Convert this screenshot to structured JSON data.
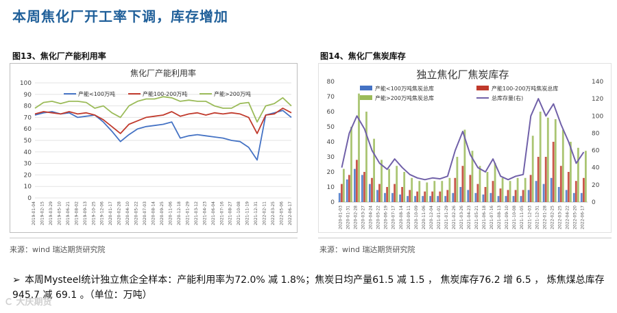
{
  "slide": {
    "title": "本周焦化厂开工率下调，库存增加",
    "summary": "本周Mysteel统计独立焦企全样本：产能利用率为72.0% 减 1.8%；焦炭日均产量61.5 减 1.5 ， 焦炭库存76.2 增 6.5 ，  炼焦煤总库存945.7 减 69.1 。（单位：万吨）",
    "bullet": "➢",
    "watermark": "Ｃ 大庆期货",
    "colors": {
      "title": "#1f5f99",
      "blue": "#4472c4",
      "red": "#c0392b",
      "green": "#9bbb59",
      "purple": "#7060a8"
    }
  },
  "figures": [
    {
      "caption": "图13、焦化厂产能利用率",
      "source": "来源：wind   瑞达期货研究院"
    },
    {
      "caption": "图14、焦化厂焦炭库存",
      "source": "来源：wind   瑞达期货研究院"
    }
  ],
  "chart_data": [
    {
      "type": "line",
      "title": "焦化厂产能利用率",
      "ylim": [
        0,
        100
      ],
      "yticks": [
        0,
        10,
        20,
        30,
        40,
        50,
        60,
        70,
        80,
        90,
        100
      ],
      "categories": [
        "2019-01-04",
        "2019-02-15",
        "2019-03-29",
        "2019-05-10",
        "2019-06-21",
        "2019-08-02",
        "2019-09-13",
        "2019-10-25",
        "2019-12-06",
        "2020-01-17",
        "2020-02-28",
        "2020-04-10",
        "2020-05-22",
        "2020-07-03",
        "2020-08-14",
        "2020-09-25",
        "2020-11-06",
        "2020-12-18",
        "2021-01-29",
        "2021-03-12",
        "2021-04-23",
        "2021-06-04",
        "2021-07-16",
        "2021-08-27",
        "2021-10-08",
        "2021-11-19",
        "2021-12-31",
        "2022-02-11",
        "2022-03-25",
        "2022-05-06",
        "2022-06-17"
      ],
      "xtick_labels": [
        "2019-01-04",
        "2019-02-15",
        "2019-03-29",
        "2019-05-10",
        "2019-06-21",
        "2019-08-02",
        "2019-09-13",
        "2019-10-25",
        "2019-12-06",
        "2020-01-17",
        "2020-02-28",
        "2020-04-10",
        "2020-05-22",
        "2020-07-03",
        "2020-08-14",
        "2020-09-25",
        "2020-11-06",
        "2020-12-18",
        "2021-01-29",
        "2021-03-12",
        "2021-04-23",
        "2021-06-04",
        "2021-07-16",
        "2021-08-27",
        "2021-10-08",
        "2021-11-19",
        "2021-12-31",
        "2022-02-11",
        "2022-03-25",
        "2022-05-06",
        "2022-06-17"
      ],
      "series": [
        {
          "name": "产能<100万吨",
          "color": "#4472c4",
          "values": [
            72,
            74,
            75,
            73,
            74,
            70,
            71,
            72,
            66,
            58,
            49,
            55,
            60,
            62,
            63,
            64,
            66,
            52,
            54,
            55,
            54,
            53,
            52,
            50,
            49,
            44,
            33,
            72,
            74,
            76,
            70
          ]
        },
        {
          "name": "产能100-200万吨",
          "color": "#c0392b",
          "values": [
            73,
            75,
            74,
            73,
            75,
            73,
            74,
            72,
            68,
            62,
            56,
            64,
            67,
            70,
            71,
            72,
            75,
            71,
            73,
            74,
            72,
            74,
            73,
            74,
            73,
            70,
            56,
            72,
            73,
            78,
            74
          ]
        },
        {
          "name": "产能>200万吨",
          "color": "#9bbb59",
          "values": [
            78,
            83,
            84,
            82,
            84,
            84,
            83,
            78,
            80,
            74,
            70,
            80,
            84,
            86,
            86,
            88,
            87,
            84,
            85,
            84,
            84,
            80,
            78,
            78,
            82,
            83,
            66,
            80,
            82,
            87,
            80
          ]
        }
      ]
    },
    {
      "type": "bar",
      "title": "独立焦化厂焦炭库存",
      "ylim": [
        0,
        80
      ],
      "yticks": [
        0,
        10,
        20,
        30,
        40,
        50,
        60,
        70,
        80
      ],
      "y2lim": [
        0,
        140
      ],
      "y2ticks": [
        0,
        20,
        40,
        60,
        80,
        100,
        120,
        140
      ],
      "categories": [
        "2020-01-03",
        "2020-01-31",
        "2020-02-28",
        "2020-03-27",
        "2020-04-24",
        "2020-05-22",
        "2020-06-19",
        "2020-07-17",
        "2020-08-14",
        "2020-09-11",
        "2020-10-09",
        "2020-11-06",
        "2020-12-04",
        "2021-01-01",
        "2021-01-29",
        "2021-02-26",
        "2021-03-26",
        "2021-04-23",
        "2021-05-21",
        "2021-06-18",
        "2021-07-16",
        "2021-08-13",
        "2021-09-10",
        "2021-10-08",
        "2021-11-05",
        "2021-12-03",
        "2021-12-31",
        "2022-01-28",
        "2022-02-25",
        "2022-03-25",
        "2022-04-22",
        "2022-05-20",
        "2022-06-17"
      ],
      "xtick_labels": [
        "2020-01-03",
        "2020-01-31",
        "2020-02-28",
        "2020-03-27",
        "2020-04-24",
        "2020-05-22",
        "2020-06-19",
        "2020-07-17",
        "2020-08-14",
        "2020-09-11",
        "2020-10-09",
        "2020-11-06",
        "2020-12-04",
        "2021-01-01",
        "2021-01-29",
        "2021-02-26",
        "2021-03-26",
        "2021-04-23",
        "2021-05-21",
        "2021-06-18",
        "2021-07-16",
        "2021-08-13",
        "2021-09-10",
        "2021-10-08",
        "2021-11-05",
        "2021-12-03",
        "2021-12-31",
        "2022-01-28",
        "2022-02-25",
        "2022-03-25",
        "2022-04-22",
        "2022-05-20",
        "2022-06-17"
      ],
      "series": [
        {
          "name": "产能<100万吨焦炭总库",
          "axis": "left",
          "color": "#4472c4",
          "values": [
            6,
            15,
            22,
            18,
            12,
            8,
            6,
            6,
            5,
            4,
            4,
            4,
            4,
            4,
            4,
            6,
            10,
            8,
            6,
            5,
            6,
            4,
            4,
            4,
            4,
            8,
            14,
            12,
            16,
            10,
            8,
            6,
            6
          ]
        },
        {
          "name": "产能100-200万吨焦炭总库",
          "axis": "left",
          "color": "#c0392b",
          "values": [
            12,
            18,
            28,
            20,
            16,
            12,
            10,
            12,
            10,
            8,
            7,
            7,
            7,
            7,
            8,
            16,
            24,
            18,
            12,
            10,
            14,
            9,
            8,
            8,
            8,
            18,
            30,
            30,
            40,
            24,
            20,
            14,
            16
          ]
        },
        {
          "name": "产能>200万吨焦炭总库",
          "axis": "left",
          "color": "#9bbb59",
          "values": [
            22,
            50,
            72,
            60,
            42,
            28,
            22,
            24,
            20,
            16,
            14,
            13,
            14,
            14,
            16,
            30,
            48,
            34,
            24,
            20,
            26,
            16,
            14,
            16,
            16,
            44,
            60,
            56,
            55,
            48,
            40,
            36,
            34
          ]
        },
        {
          "name": "总库存量(右)",
          "axis": "right",
          "color": "#7060a8",
          "values": [
            40,
            80,
            100,
            85,
            60,
            45,
            38,
            50,
            40,
            32,
            28,
            26,
            28,
            27,
            30,
            60,
            82,
            55,
            40,
            35,
            50,
            30,
            26,
            30,
            32,
            100,
            120,
            100,
            114,
            90,
            70,
            45,
            58
          ]
        }
      ]
    }
  ]
}
